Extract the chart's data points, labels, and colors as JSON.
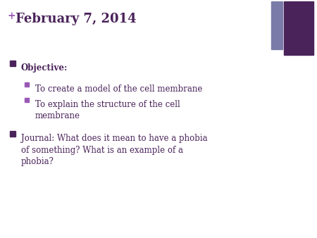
{
  "background_color": "#ffffff",
  "title": "February 7, 2014",
  "title_color": "#4a235a",
  "title_fontsize": 13,
  "plus_color": "#9b59b6",
  "plus_symbol": "+",
  "bullet_color_dark": "#4a235a",
  "bullet_color_light": "#9b59b6",
  "body_text_color": "#4a235a",
  "body_fontsize": 8.5,
  "rect_color_light": "#7b7baa",
  "rect_color_dark": "#4a235a",
  "lines": [
    {
      "level": 0,
      "text": "Objective:",
      "bold": true
    },
    {
      "level": 1,
      "text": "To create a model of the cell membrane",
      "bold": false
    },
    {
      "level": 1,
      "text": "To explain the structure of the cell\nmembrane",
      "bold": false
    },
    {
      "level": 0,
      "text": "Journal: What does it mean to have a phobia\nof something? What is an example of a\nphobia?",
      "bold": false
    }
  ]
}
